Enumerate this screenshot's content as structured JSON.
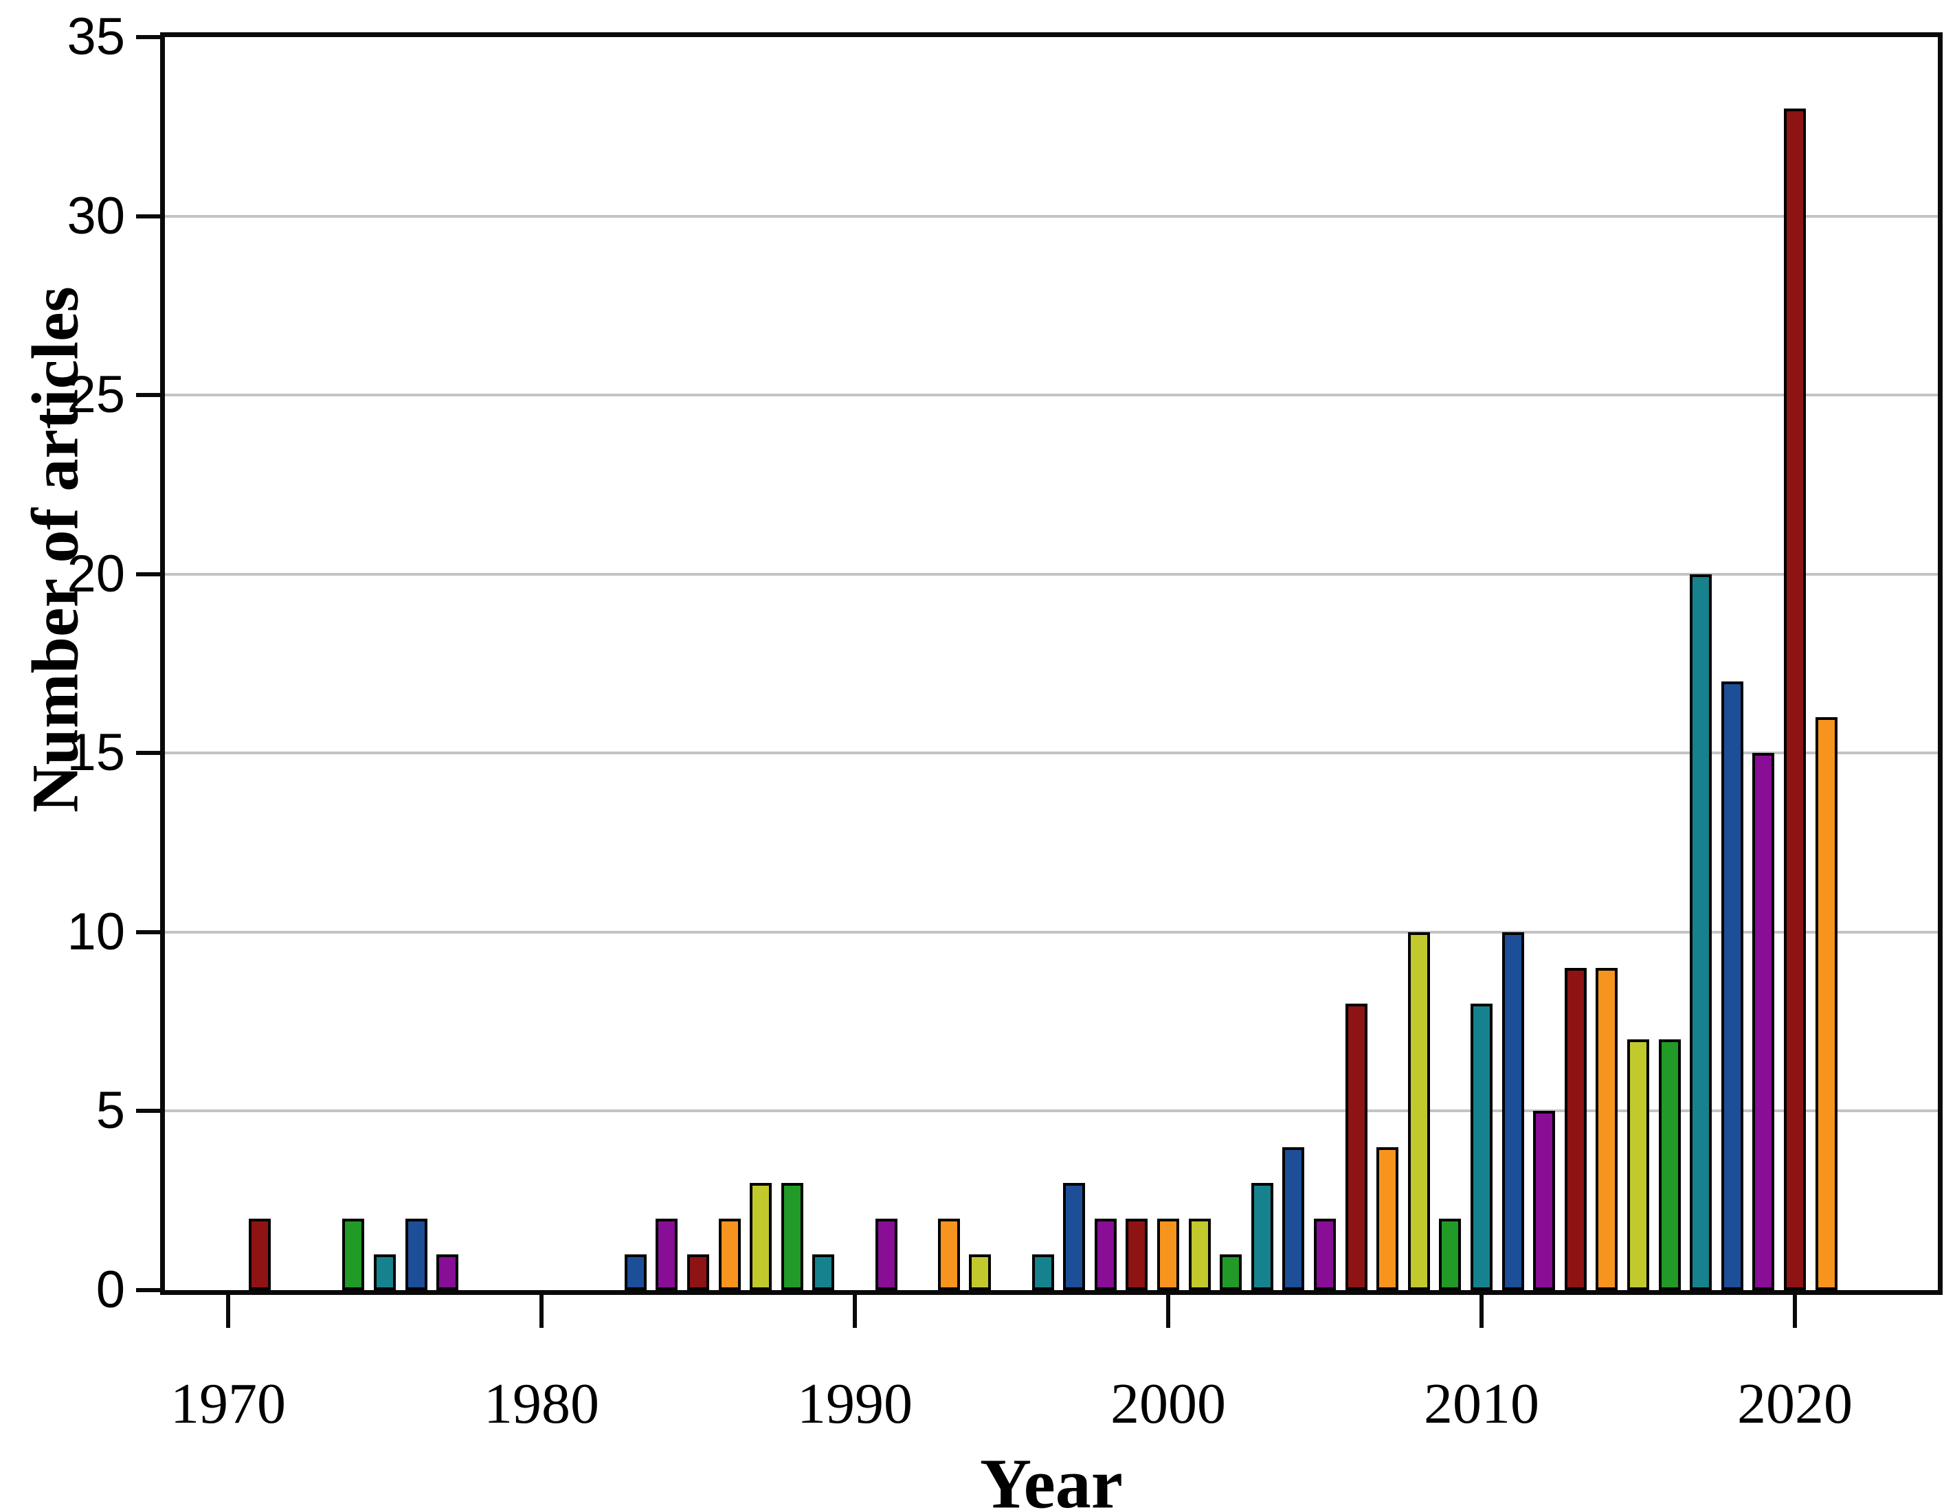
{
  "figure": {
    "background": "#ffffff",
    "frame_color": "#0a0a0a",
    "gridline_color": "#c3c3c3",
    "bar_outline_color": "#000000"
  },
  "chart_data": {
    "type": "bar",
    "title": "",
    "xlabel": "Year",
    "ylabel": "Number of articles",
    "ylim": [
      0,
      35
    ],
    "yticks": [
      0,
      5,
      10,
      15,
      20,
      25,
      30,
      35
    ],
    "xticks": [
      1970,
      1980,
      1990,
      2000,
      2010,
      2020
    ],
    "x_domain": [
      1968,
      2024.6
    ],
    "grid": {
      "horizontal": true,
      "vertical": false,
      "legend": "none"
    },
    "color_cycle": [
      "darkred",
      "orange",
      "yellow",
      "green",
      "teal",
      "blue",
      "purple"
    ],
    "color_cycle_anchor": "1971 = darkred, one bar per year, colors repeat every 7 years",
    "palette": {
      "darkred": "#8e1313",
      "orange": "#f7941e",
      "yellow": "#c2c92d",
      "green": "#219a28",
      "teal": "#16828e",
      "blue": "#1c4f97",
      "purple": "#870e95"
    },
    "bars": [
      {
        "year": 1971,
        "value": 2,
        "color": "darkred"
      },
      {
        "year": 1974,
        "value": 2,
        "color": "green"
      },
      {
        "year": 1975,
        "value": 1,
        "color": "teal"
      },
      {
        "year": 1976,
        "value": 2,
        "color": "blue"
      },
      {
        "year": 1977,
        "value": 1,
        "color": "purple"
      },
      {
        "year": 1983,
        "value": 1,
        "color": "blue"
      },
      {
        "year": 1984,
        "value": 2,
        "color": "purple"
      },
      {
        "year": 1985,
        "value": 1,
        "color": "darkred"
      },
      {
        "year": 1986,
        "value": 2,
        "color": "orange"
      },
      {
        "year": 1987,
        "value": 3,
        "color": "yellow"
      },
      {
        "year": 1988,
        "value": 3,
        "color": "green"
      },
      {
        "year": 1989,
        "value": 1,
        "color": "teal"
      },
      {
        "year": 1991,
        "value": 2,
        "color": "purple"
      },
      {
        "year": 1993,
        "value": 2,
        "color": "orange"
      },
      {
        "year": 1994,
        "value": 1,
        "color": "yellow"
      },
      {
        "year": 1996,
        "value": 1,
        "color": "teal"
      },
      {
        "year": 1997,
        "value": 3,
        "color": "blue"
      },
      {
        "year": 1998,
        "value": 2,
        "color": "purple"
      },
      {
        "year": 1999,
        "value": 2,
        "color": "darkred"
      },
      {
        "year": 2000,
        "value": 2,
        "color": "orange"
      },
      {
        "year": 2001,
        "value": 2,
        "color": "yellow"
      },
      {
        "year": 2002,
        "value": 1,
        "color": "green"
      },
      {
        "year": 2003,
        "value": 3,
        "color": "teal"
      },
      {
        "year": 2004,
        "value": 4,
        "color": "blue"
      },
      {
        "year": 2005,
        "value": 2,
        "color": "purple"
      },
      {
        "year": 2006,
        "value": 8,
        "color": "darkred"
      },
      {
        "year": 2007,
        "value": 4,
        "color": "orange"
      },
      {
        "year": 2008,
        "value": 10,
        "color": "yellow"
      },
      {
        "year": 2009,
        "value": 2,
        "color": "green"
      },
      {
        "year": 2010,
        "value": 8,
        "color": "teal"
      },
      {
        "year": 2011,
        "value": 10,
        "color": "blue"
      },
      {
        "year": 2012,
        "value": 5,
        "color": "purple"
      },
      {
        "year": 2013,
        "value": 9,
        "color": "darkred"
      },
      {
        "year": 2014,
        "value": 9,
        "color": "orange"
      },
      {
        "year": 2015,
        "value": 7,
        "color": "yellow"
      },
      {
        "year": 2016,
        "value": 7,
        "color": "green"
      },
      {
        "year": 2017,
        "value": 20,
        "color": "teal"
      },
      {
        "year": 2018,
        "value": 17,
        "color": "blue"
      },
      {
        "year": 2019,
        "value": 15,
        "color": "purple"
      },
      {
        "year": 2020,
        "value": 33,
        "color": "darkred"
      },
      {
        "year": 2021,
        "value": 16,
        "color": "orange"
      }
    ]
  }
}
